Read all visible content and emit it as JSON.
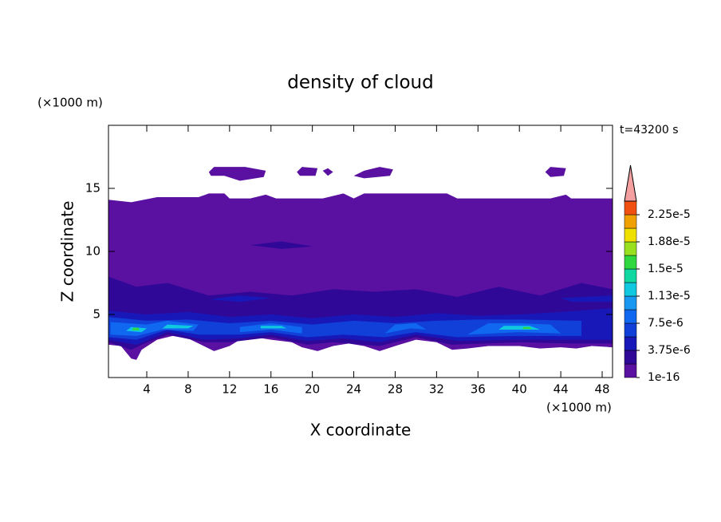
{
  "chart_data": {
    "type": "contour",
    "title": "density of cloud",
    "xlabel": "X coordinate",
    "ylabel": "Z coordinate",
    "xunit": "(×1000 m)",
    "yunit": "(×1000 m)",
    "annotation": "t=43200 s",
    "xlim": [
      0.3,
      49
    ],
    "ylim": [
      0,
      20
    ],
    "xticks": [
      4,
      8,
      12,
      16,
      20,
      24,
      28,
      32,
      36,
      40,
      44,
      48
    ],
    "yticks": [
      5,
      10,
      15
    ],
    "levels": [
      1e-16,
      1.875e-06,
      3.75e-06,
      5.625e-06,
      7.5e-06,
      9.375e-06,
      1.125e-05,
      1.3125e-05,
      1.5e-05,
      1.6875e-05,
      1.875e-05,
      2.0625e-05,
      2.25e-05,
      2.4375e-05
    ],
    "colors": [
      "#5a10a0",
      "#300898",
      "#1818b8",
      "#1040d8",
      "#1068f0",
      "#1898f0",
      "#10c8e0",
      "#10d8a0",
      "#30d840",
      "#98e020",
      "#f0e000",
      "#f0a000",
      "#f05010"
    ],
    "over_color": "#f4a0a0",
    "colorbar_ticks": [
      {
        "value": 1e-16,
        "label": "1e-16"
      },
      {
        "value": 3.75e-06,
        "label": "3.75e-6"
      },
      {
        "value": 7.5e-06,
        "label": "7.5e-6"
      },
      {
        "value": 1.125e-05,
        "label": "1.13e-5"
      },
      {
        "value": 1.5e-05,
        "label": "1.5e-5"
      },
      {
        "value": 1.875e-05,
        "label": "1.88e-5"
      },
      {
        "value": 2.25e-05,
        "label": "2.25e-5"
      }
    ],
    "regions": [
      {
        "level": 0,
        "points": [
          [
            0.3,
            2.6
          ],
          [
            1.5,
            2.5
          ],
          [
            2.5,
            1.5
          ],
          [
            3,
            1.4
          ],
          [
            3.5,
            2.2
          ],
          [
            5,
            3
          ],
          [
            6.5,
            3.3
          ],
          [
            8,
            3.1
          ],
          [
            9.5,
            2.5
          ],
          [
            10.5,
            2.1
          ],
          [
            12,
            2.5
          ],
          [
            13,
            3
          ],
          [
            14.5,
            3.2
          ],
          [
            16,
            3.0
          ],
          [
            18,
            2.8
          ],
          [
            19,
            2.4
          ],
          [
            20.5,
            2.1
          ],
          [
            22,
            2.5
          ],
          [
            23.5,
            2.7
          ],
          [
            25,
            2.5
          ],
          [
            26.5,
            2.1
          ],
          [
            28,
            2.5
          ],
          [
            30,
            3.0
          ],
          [
            32,
            2.8
          ],
          [
            33.5,
            2.2
          ],
          [
            35,
            2.3
          ],
          [
            37,
            2.5
          ],
          [
            40,
            2.5
          ],
          [
            42,
            2.3
          ],
          [
            44,
            2.4
          ],
          [
            45.5,
            2.3
          ],
          [
            47,
            2.5
          ],
          [
            49,
            2.4
          ],
          [
            49,
            14.2
          ],
          [
            45,
            14.2
          ],
          [
            44.5,
            14.5
          ],
          [
            43,
            14.2
          ],
          [
            34,
            14.2
          ],
          [
            33,
            14.6
          ],
          [
            25,
            14.6
          ],
          [
            24,
            14.2
          ],
          [
            23,
            14.6
          ],
          [
            21,
            14.2
          ],
          [
            16.5,
            14.2
          ],
          [
            15.5,
            14.5
          ],
          [
            14,
            14.2
          ],
          [
            12,
            14.2
          ],
          [
            11.5,
            14.6
          ],
          [
            10,
            14.6
          ],
          [
            9,
            14.3
          ],
          [
            5,
            14.3
          ],
          [
            2.5,
            13.9
          ],
          [
            0.3,
            14.1
          ]
        ]
      },
      {
        "level": 0,
        "points": [
          [
            10,
            16.3
          ],
          [
            10.5,
            16.7
          ],
          [
            13.5,
            16.7
          ],
          [
            15.5,
            16.4
          ],
          [
            15.3,
            15.9
          ],
          [
            13,
            15.6
          ],
          [
            11.5,
            16.0
          ],
          [
            10.2,
            16.0
          ]
        ]
      },
      {
        "level": 0,
        "points": [
          [
            18.5,
            16.3
          ],
          [
            19,
            16.7
          ],
          [
            20.5,
            16.6
          ],
          [
            20.3,
            16.0
          ],
          [
            18.8,
            16.0
          ]
        ]
      },
      {
        "level": 0,
        "points": [
          [
            21,
            16.4
          ],
          [
            21.5,
            16.6
          ],
          [
            22,
            16.3
          ],
          [
            21.5,
            16.0
          ]
        ]
      },
      {
        "level": 0,
        "points": [
          [
            24,
            16.0
          ],
          [
            25,
            16.4
          ],
          [
            26.5,
            16.7
          ],
          [
            27.8,
            16.5
          ],
          [
            27.5,
            16.0
          ],
          [
            25,
            15.8
          ]
        ]
      },
      {
        "level": 0,
        "points": [
          [
            42.5,
            16.3
          ],
          [
            43,
            16.7
          ],
          [
            44.5,
            16.6
          ],
          [
            44.3,
            16.0
          ],
          [
            43,
            15.9
          ]
        ]
      },
      {
        "level": 1,
        "points": [
          [
            0.3,
            2.8
          ],
          [
            2.5,
            2.2
          ],
          [
            3.5,
            2.6
          ],
          [
            6,
            3.4
          ],
          [
            9.5,
            2.8
          ],
          [
            12,
            2.8
          ],
          [
            16,
            3.2
          ],
          [
            19.5,
            2.6
          ],
          [
            22,
            2.8
          ],
          [
            26.5,
            2.5
          ],
          [
            30,
            3.2
          ],
          [
            33.5,
            2.6
          ],
          [
            40,
            2.8
          ],
          [
            45,
            2.7
          ],
          [
            49,
            2.7
          ],
          [
            49,
            7
          ],
          [
            46,
            7.5
          ],
          [
            42,
            6.5
          ],
          [
            38,
            7.2
          ],
          [
            34,
            6.4
          ],
          [
            30,
            7.0
          ],
          [
            26,
            6.8
          ],
          [
            22,
            7.0
          ],
          [
            18,
            6.5
          ],
          [
            14,
            6.8
          ],
          [
            10,
            6.5
          ],
          [
            6,
            7.5
          ],
          [
            3,
            7.2
          ],
          [
            0.3,
            8
          ]
        ]
      },
      {
        "level": 1,
        "points": [
          [
            14,
            10.5
          ],
          [
            17,
            10.8
          ],
          [
            20,
            10.4
          ],
          [
            17,
            10.2
          ]
        ]
      },
      {
        "level": 2,
        "points": [
          [
            0.3,
            3.0
          ],
          [
            3,
            2.6
          ],
          [
            6,
            3.6
          ],
          [
            9.5,
            3.0
          ],
          [
            13,
            3.1
          ],
          [
            16,
            3.4
          ],
          [
            19.5,
            2.9
          ],
          [
            23,
            3.1
          ],
          [
            26.5,
            2.8
          ],
          [
            30,
            3.4
          ],
          [
            34,
            2.9
          ],
          [
            40,
            3.0
          ],
          [
            45,
            3.0
          ],
          [
            49,
            3.0
          ],
          [
            49,
            5.5
          ],
          [
            44,
            5.2
          ],
          [
            40,
            5.0
          ],
          [
            36,
            4.9
          ],
          [
            32,
            5.1
          ],
          [
            28,
            4.8
          ],
          [
            24,
            5.0
          ],
          [
            20,
            4.7
          ],
          [
            16,
            5.0
          ],
          [
            12,
            4.8
          ],
          [
            8,
            5.2
          ],
          [
            4,
            5.0
          ],
          [
            0.3,
            5.3
          ]
        ]
      },
      {
        "level": 2,
        "points": [
          [
            10,
            6.2
          ],
          [
            13,
            6.5
          ],
          [
            16,
            6.3
          ],
          [
            13,
            6.0
          ]
        ]
      },
      {
        "level": 2,
        "points": [
          [
            44,
            6.3
          ],
          [
            49,
            6.5
          ],
          [
            49,
            6.0
          ],
          [
            45,
            6.0
          ]
        ]
      },
      {
        "level": 3,
        "points": [
          [
            0.3,
            3.2
          ],
          [
            3,
            3.0
          ],
          [
            6,
            3.8
          ],
          [
            9,
            3.4
          ],
          [
            13,
            3.4
          ],
          [
            16,
            3.6
          ],
          [
            19.5,
            3.2
          ],
          [
            23,
            3.4
          ],
          [
            27,
            3.2
          ],
          [
            30,
            3.6
          ],
          [
            34,
            3.2
          ],
          [
            40,
            3.3
          ],
          [
            46,
            3.3
          ],
          [
            46,
            4.5
          ],
          [
            40,
            4.6
          ],
          [
            36,
            4.6
          ],
          [
            32,
            4.5
          ],
          [
            28,
            4.3
          ],
          [
            24,
            4.5
          ],
          [
            20,
            4.2
          ],
          [
            16,
            4.5
          ],
          [
            12,
            4.3
          ],
          [
            8,
            4.6
          ],
          [
            4,
            4.5
          ],
          [
            0.3,
            4.8
          ]
        ]
      },
      {
        "level": 4,
        "points": [
          [
            0.5,
            3.4
          ],
          [
            3,
            3.3
          ],
          [
            5.5,
            3.8
          ],
          [
            8.5,
            3.7
          ],
          [
            9,
            4.2
          ],
          [
            6,
            4.5
          ],
          [
            4,
            4.2
          ],
          [
            0.5,
            4.4
          ]
        ]
      },
      {
        "level": 4,
        "points": [
          [
            13,
            3.6
          ],
          [
            16,
            3.8
          ],
          [
            19,
            3.5
          ],
          [
            19,
            4.0
          ],
          [
            16,
            4.3
          ],
          [
            13,
            4.0
          ]
        ]
      },
      {
        "level": 4,
        "points": [
          [
            27,
            3.5
          ],
          [
            29.5,
            3.9
          ],
          [
            31,
            3.8
          ],
          [
            30,
            4.3
          ],
          [
            28,
            4.2
          ]
        ]
      },
      {
        "level": 4,
        "points": [
          [
            35,
            3.4
          ],
          [
            40,
            3.6
          ],
          [
            44,
            3.5
          ],
          [
            43,
            4.2
          ],
          [
            40,
            4.3
          ],
          [
            37,
            4.3
          ]
        ]
      },
      {
        "level": 6,
        "points": [
          [
            2,
            3.7
          ],
          [
            3.5,
            3.6
          ],
          [
            4,
            3.9
          ],
          [
            2.5,
            4.0
          ]
        ]
      },
      {
        "level": 6,
        "points": [
          [
            5.5,
            3.9
          ],
          [
            8,
            3.9
          ],
          [
            8.5,
            4.1
          ],
          [
            6,
            4.2
          ]
        ]
      },
      {
        "level": 6,
        "points": [
          [
            15,
            3.9
          ],
          [
            17.5,
            3.9
          ],
          [
            17,
            4.1
          ],
          [
            15,
            4.1
          ]
        ]
      },
      {
        "level": 6,
        "points": [
          [
            38,
            3.8
          ],
          [
            42,
            3.8
          ],
          [
            41,
            4.1
          ],
          [
            38.5,
            4.1
          ]
        ]
      },
      {
        "level": 8,
        "points": [
          [
            2.6,
            3.75
          ],
          [
            3.3,
            3.75
          ],
          [
            3.2,
            3.95
          ],
          [
            2.7,
            3.95
          ]
        ]
      },
      {
        "level": 8,
        "points": [
          [
            40.3,
            3.85
          ],
          [
            41.2,
            3.85
          ],
          [
            41,
            4.0
          ],
          [
            40.4,
            4.0
          ]
        ]
      }
    ]
  }
}
